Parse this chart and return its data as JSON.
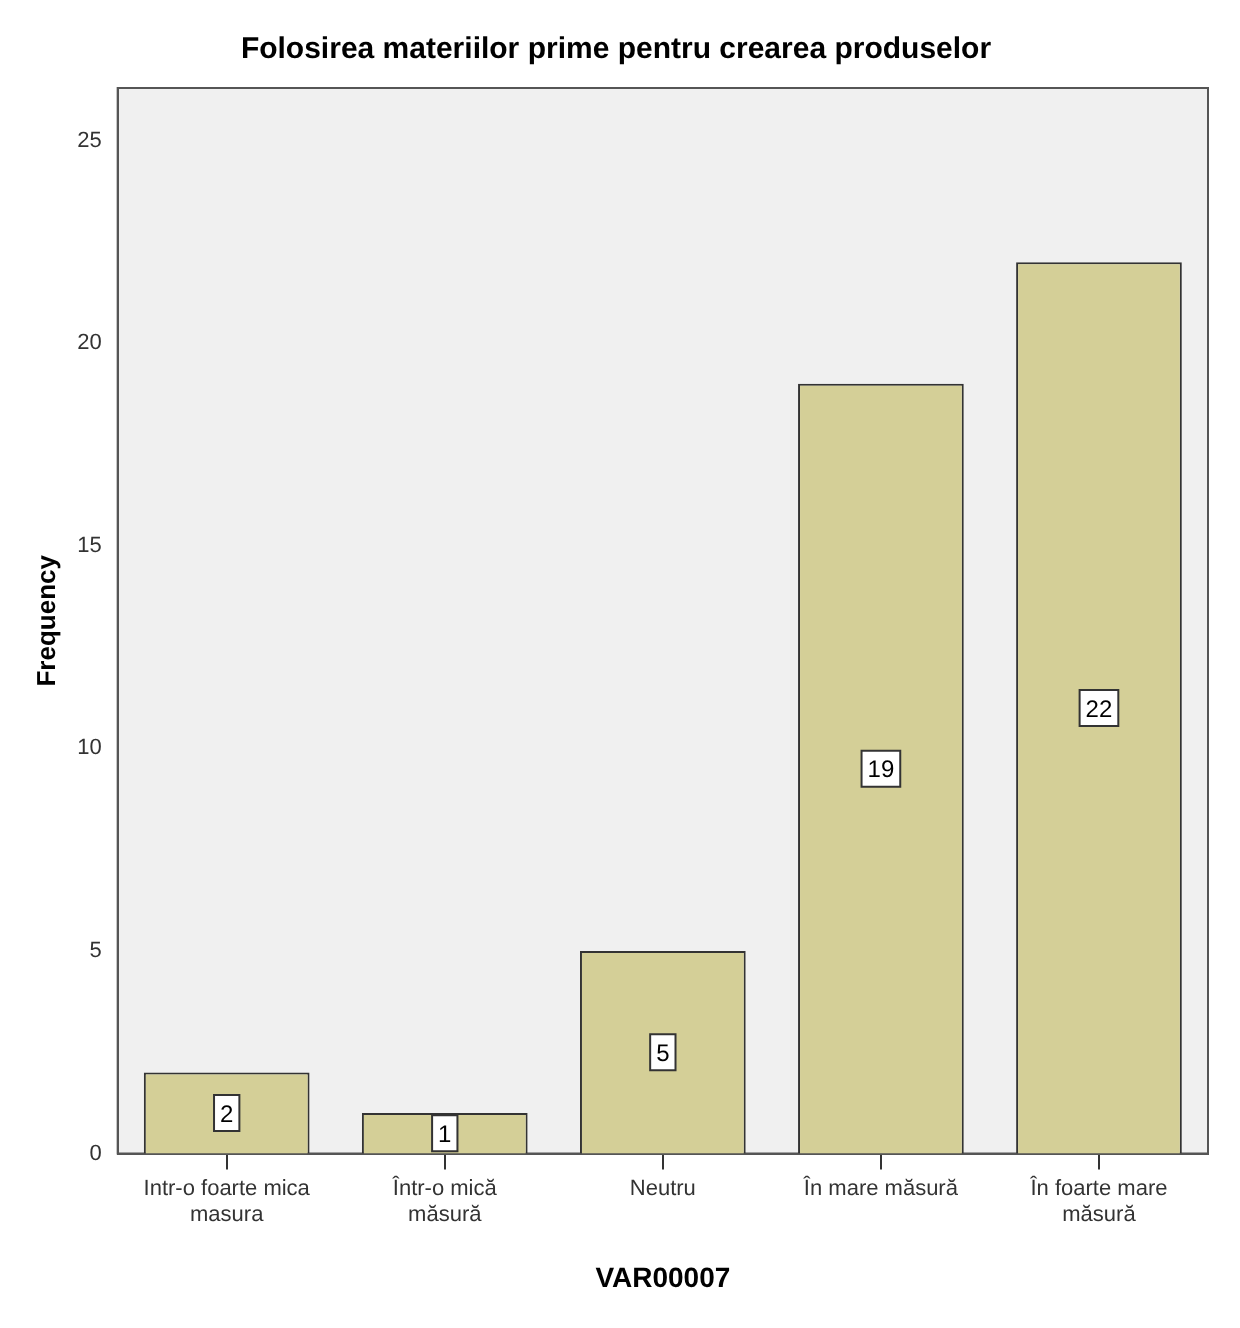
{
  "chart_data": {
    "type": "bar",
    "title": "Folosirea materiilor prime pentru crearea produselor",
    "xlabel": "VAR00007",
    "ylabel": "Frequency",
    "categories": [
      "Intr-o foarte mica masura",
      "Într-o mică măsură",
      "Neutru",
      "În mare măsură",
      "În foarte mare măsură"
    ],
    "values": [
      2,
      1,
      5,
      19,
      22
    ],
    "color": "#d4cf97",
    "ylim": [
      0,
      26.3
    ],
    "yticks": [
      0,
      5,
      10,
      15,
      20,
      25
    ],
    "grid": false,
    "legend": false,
    "data_labels": true
  }
}
